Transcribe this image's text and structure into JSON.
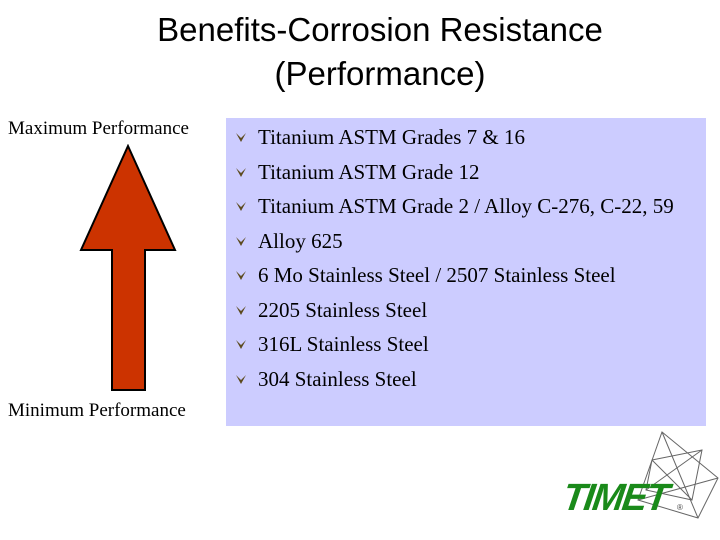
{
  "title": {
    "line1": "Benefits-Corrosion Resistance",
    "line2": "(Performance)"
  },
  "scale": {
    "max_label": "Maximum Performance",
    "min_label": "Minimum Performance",
    "arrow_color": "#cc3300"
  },
  "list": {
    "background": "#ccccff",
    "bullet_color": "#5c4a1e",
    "items": [
      {
        "label": "Titanium ASTM Grades 7 & 16"
      },
      {
        "label": "Titanium ASTM Grade 12"
      },
      {
        "label": "Titanium ASTM Grade 2 / Alloy C-276, C-22, 59"
      },
      {
        "label": "Alloy 625"
      },
      {
        "label": "6 Mo Stainless Steel / 2507 Stainless Steel"
      },
      {
        "label": "2205 Stainless Steel"
      },
      {
        "label": "316L Stainless Steel"
      },
      {
        "label": "304 Stainless Steel"
      }
    ]
  },
  "logo": {
    "text": "TIMET",
    "registered": "®",
    "color": "#1a8a1a"
  }
}
